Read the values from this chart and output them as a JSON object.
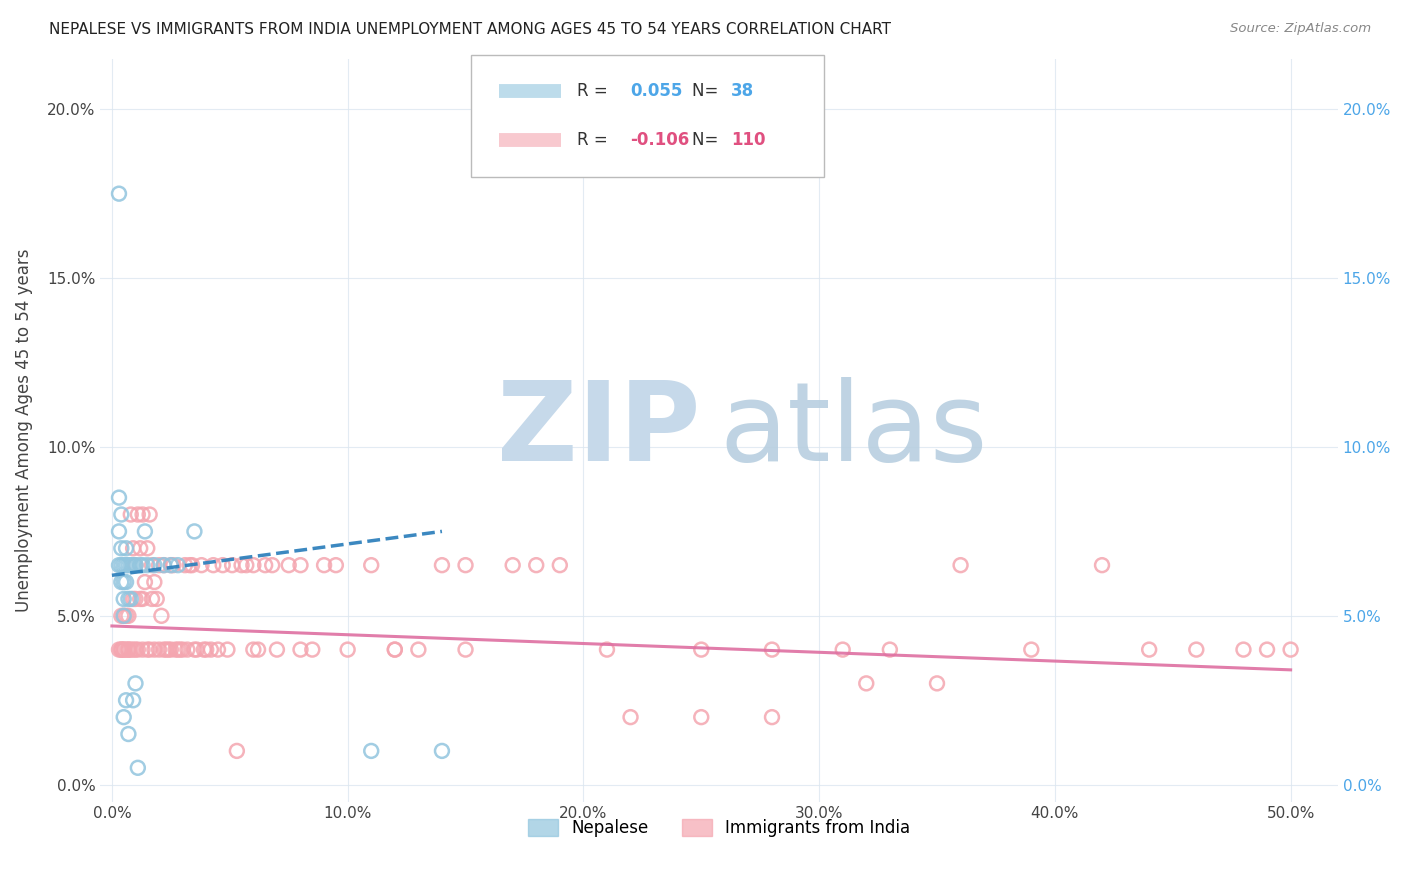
{
  "title": "NEPALESE VS IMMIGRANTS FROM INDIA UNEMPLOYMENT AMONG AGES 45 TO 54 YEARS CORRELATION CHART",
  "source": "Source: ZipAtlas.com",
  "ylabel": "Unemployment Among Ages 45 to 54 years",
  "xlim": [
    0.0,
    0.5
  ],
  "ylim": [
    0.0,
    0.21
  ],
  "nepalese_R": 0.055,
  "nepalese_N": 38,
  "india_R": -0.106,
  "india_N": 110,
  "nepalese_color": "#92c5de",
  "india_color": "#f4a6b0",
  "nepalese_line_color": "#3182bd",
  "india_line_color": "#de6fa1",
  "watermark_zip_color": "#c6d9ea",
  "watermark_atlas_color": "#b8cfe0",
  "legend_nepalese": "Nepalese",
  "legend_india": "Immigrants from India",
  "legend_R1_color": "#4da6e8",
  "legend_R2_color": "#e05080",
  "nep_x": [
    0.003,
    0.003,
    0.003,
    0.003,
    0.004,
    0.004,
    0.004,
    0.004,
    0.005,
    0.005,
    0.005,
    0.005,
    0.005,
    0.006,
    0.006,
    0.006,
    0.006,
    0.007,
    0.007,
    0.007,
    0.008,
    0.008,
    0.009,
    0.009,
    0.01,
    0.01,
    0.011,
    0.012,
    0.013,
    0.014,
    0.015,
    0.018,
    0.022,
    0.025,
    0.028,
    0.035,
    0.11,
    0.14
  ],
  "nep_y": [
    0.175,
    0.085,
    0.075,
    0.065,
    0.08,
    0.07,
    0.065,
    0.06,
    0.065,
    0.06,
    0.055,
    0.05,
    0.02,
    0.07,
    0.065,
    0.06,
    0.025,
    0.065,
    0.055,
    0.015,
    0.065,
    0.055,
    0.065,
    0.025,
    0.065,
    0.03,
    0.005,
    0.065,
    0.065,
    0.075,
    0.065,
    0.065,
    0.065,
    0.065,
    0.065,
    0.075,
    0.01,
    0.01
  ],
  "ind_x": [
    0.003,
    0.004,
    0.004,
    0.004,
    0.005,
    0.005,
    0.005,
    0.006,
    0.006,
    0.007,
    0.007,
    0.007,
    0.008,
    0.008,
    0.009,
    0.009,
    0.009,
    0.01,
    0.01,
    0.01,
    0.011,
    0.011,
    0.012,
    0.012,
    0.013,
    0.013,
    0.013,
    0.014,
    0.015,
    0.015,
    0.016,
    0.016,
    0.017,
    0.017,
    0.018,
    0.018,
    0.019,
    0.02,
    0.02,
    0.021,
    0.022,
    0.022,
    0.023,
    0.024,
    0.025,
    0.025,
    0.026,
    0.027,
    0.028,
    0.029,
    0.03,
    0.031,
    0.032,
    0.033,
    0.034,
    0.035,
    0.036,
    0.038,
    0.039,
    0.04,
    0.042,
    0.043,
    0.045,
    0.047,
    0.049,
    0.051,
    0.053,
    0.055,
    0.057,
    0.06,
    0.062,
    0.065,
    0.068,
    0.07,
    0.075,
    0.08,
    0.085,
    0.09,
    0.095,
    0.1,
    0.11,
    0.12,
    0.13,
    0.14,
    0.15,
    0.17,
    0.19,
    0.21,
    0.25,
    0.28,
    0.31,
    0.33,
    0.36,
    0.39,
    0.42,
    0.44,
    0.46,
    0.48,
    0.49,
    0.5,
    0.25,
    0.32,
    0.28,
    0.35,
    0.22,
    0.18,
    0.15,
    0.12,
    0.08,
    0.06
  ],
  "ind_y": [
    0.04,
    0.04,
    0.05,
    0.04,
    0.04,
    0.05,
    0.04,
    0.04,
    0.05,
    0.04,
    0.05,
    0.04,
    0.08,
    0.04,
    0.07,
    0.055,
    0.04,
    0.065,
    0.055,
    0.04,
    0.08,
    0.04,
    0.07,
    0.055,
    0.08,
    0.055,
    0.04,
    0.06,
    0.07,
    0.04,
    0.08,
    0.04,
    0.065,
    0.055,
    0.06,
    0.04,
    0.055,
    0.065,
    0.04,
    0.05,
    0.065,
    0.04,
    0.04,
    0.04,
    0.065,
    0.04,
    0.065,
    0.04,
    0.04,
    0.04,
    0.04,
    0.065,
    0.04,
    0.065,
    0.065,
    0.04,
    0.04,
    0.065,
    0.04,
    0.04,
    0.04,
    0.065,
    0.04,
    0.065,
    0.04,
    0.065,
    0.01,
    0.065,
    0.065,
    0.065,
    0.04,
    0.065,
    0.065,
    0.04,
    0.065,
    0.065,
    0.04,
    0.065,
    0.065,
    0.04,
    0.065,
    0.04,
    0.04,
    0.065,
    0.04,
    0.065,
    0.065,
    0.04,
    0.04,
    0.04,
    0.04,
    0.04,
    0.065,
    0.04,
    0.065,
    0.04,
    0.04,
    0.04,
    0.04,
    0.04,
    0.02,
    0.03,
    0.02,
    0.03,
    0.02,
    0.065,
    0.065,
    0.04,
    0.04,
    0.04
  ],
  "nep_line_x": [
    0.0,
    0.14
  ],
  "nep_line_y_start": 0.062,
  "nep_line_y_end": 0.075,
  "ind_line_x": [
    0.0,
    0.5
  ],
  "ind_line_y_start": 0.047,
  "ind_line_y_end": 0.034
}
